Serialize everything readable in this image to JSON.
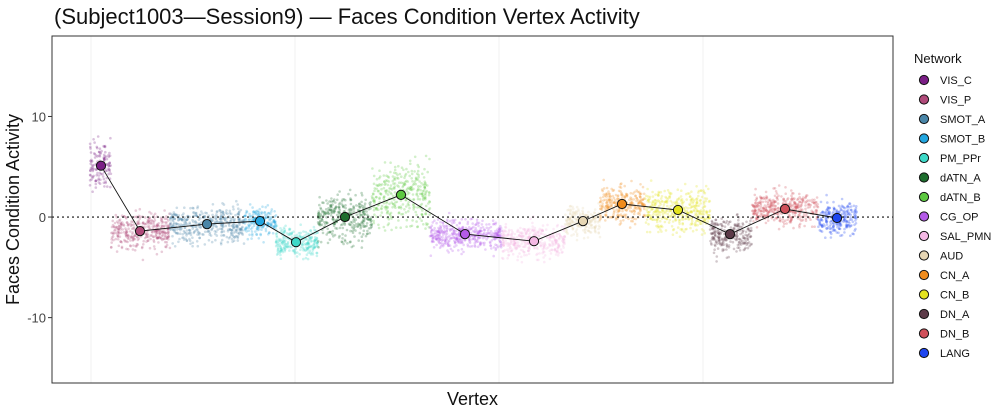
{
  "chart_data": {
    "type": "scatter",
    "title": "(Subject1003—Session9) — Faces Condition Vertex Activity",
    "xlabel": "Vertex",
    "ylabel": "Faces Condition Activity",
    "ylim": [
      -16.5,
      18
    ],
    "yticks": [
      -10,
      0,
      10
    ],
    "ytick_labels": [
      "-10",
      "0",
      "10"
    ],
    "reference_line": 0,
    "grid": false,
    "legend_position": "right",
    "legend_title": "Network",
    "series": [
      {
        "name": "VIS_C",
        "color": "#7B1F86",
        "mean": 5.1,
        "spread": 3.2
      },
      {
        "name": "VIS_P",
        "color": "#B04A7A",
        "mean": -1.4,
        "spread": 2.4
      },
      {
        "name": "SMOT_A",
        "color": "#4A86A8",
        "mean": -0.7,
        "spread": 2.2
      },
      {
        "name": "SMOT_B",
        "color": "#22A6E0",
        "mean": -0.4,
        "spread": 1.7
      },
      {
        "name": "PM_PPr",
        "color": "#3DD9C8",
        "mean": -2.5,
        "spread": 1.9
      },
      {
        "name": "dATN_A",
        "color": "#1E6E2E",
        "mean": 0.0,
        "spread": 3.0
      },
      {
        "name": "dATN_B",
        "color": "#5CC840",
        "mean": 2.2,
        "spread": 3.8
      },
      {
        "name": "CG_OP",
        "color": "#B45AE8",
        "mean": -1.7,
        "spread": 1.9
      },
      {
        "name": "SAL_PMN",
        "color": "#F4B8E4",
        "mean": -2.4,
        "spread": 2.0
      },
      {
        "name": "AUD",
        "color": "#E6D6B4",
        "mean": -0.4,
        "spread": 1.8
      },
      {
        "name": "CN_A",
        "color": "#F08C1E",
        "mean": 1.3,
        "spread": 2.3
      },
      {
        "name": "CN_B",
        "color": "#E4E31E",
        "mean": 0.7,
        "spread": 2.6
      },
      {
        "name": "DN_A",
        "color": "#5C3A48",
        "mean": -1.7,
        "spread": 2.2
      },
      {
        "name": "DN_B",
        "color": "#D0505A",
        "mean": 0.8,
        "spread": 2.0
      },
      {
        "name": "LANG",
        "color": "#1E46F0",
        "mean": -0.1,
        "spread": 2.2
      }
    ],
    "mean_points": [
      5.1,
      -1.4,
      -0.7,
      -0.4,
      -2.5,
      0.0,
      2.2,
      -1.7,
      -2.4,
      -0.4,
      1.3,
      0.7,
      -1.7,
      0.8,
      -0.1
    ]
  }
}
